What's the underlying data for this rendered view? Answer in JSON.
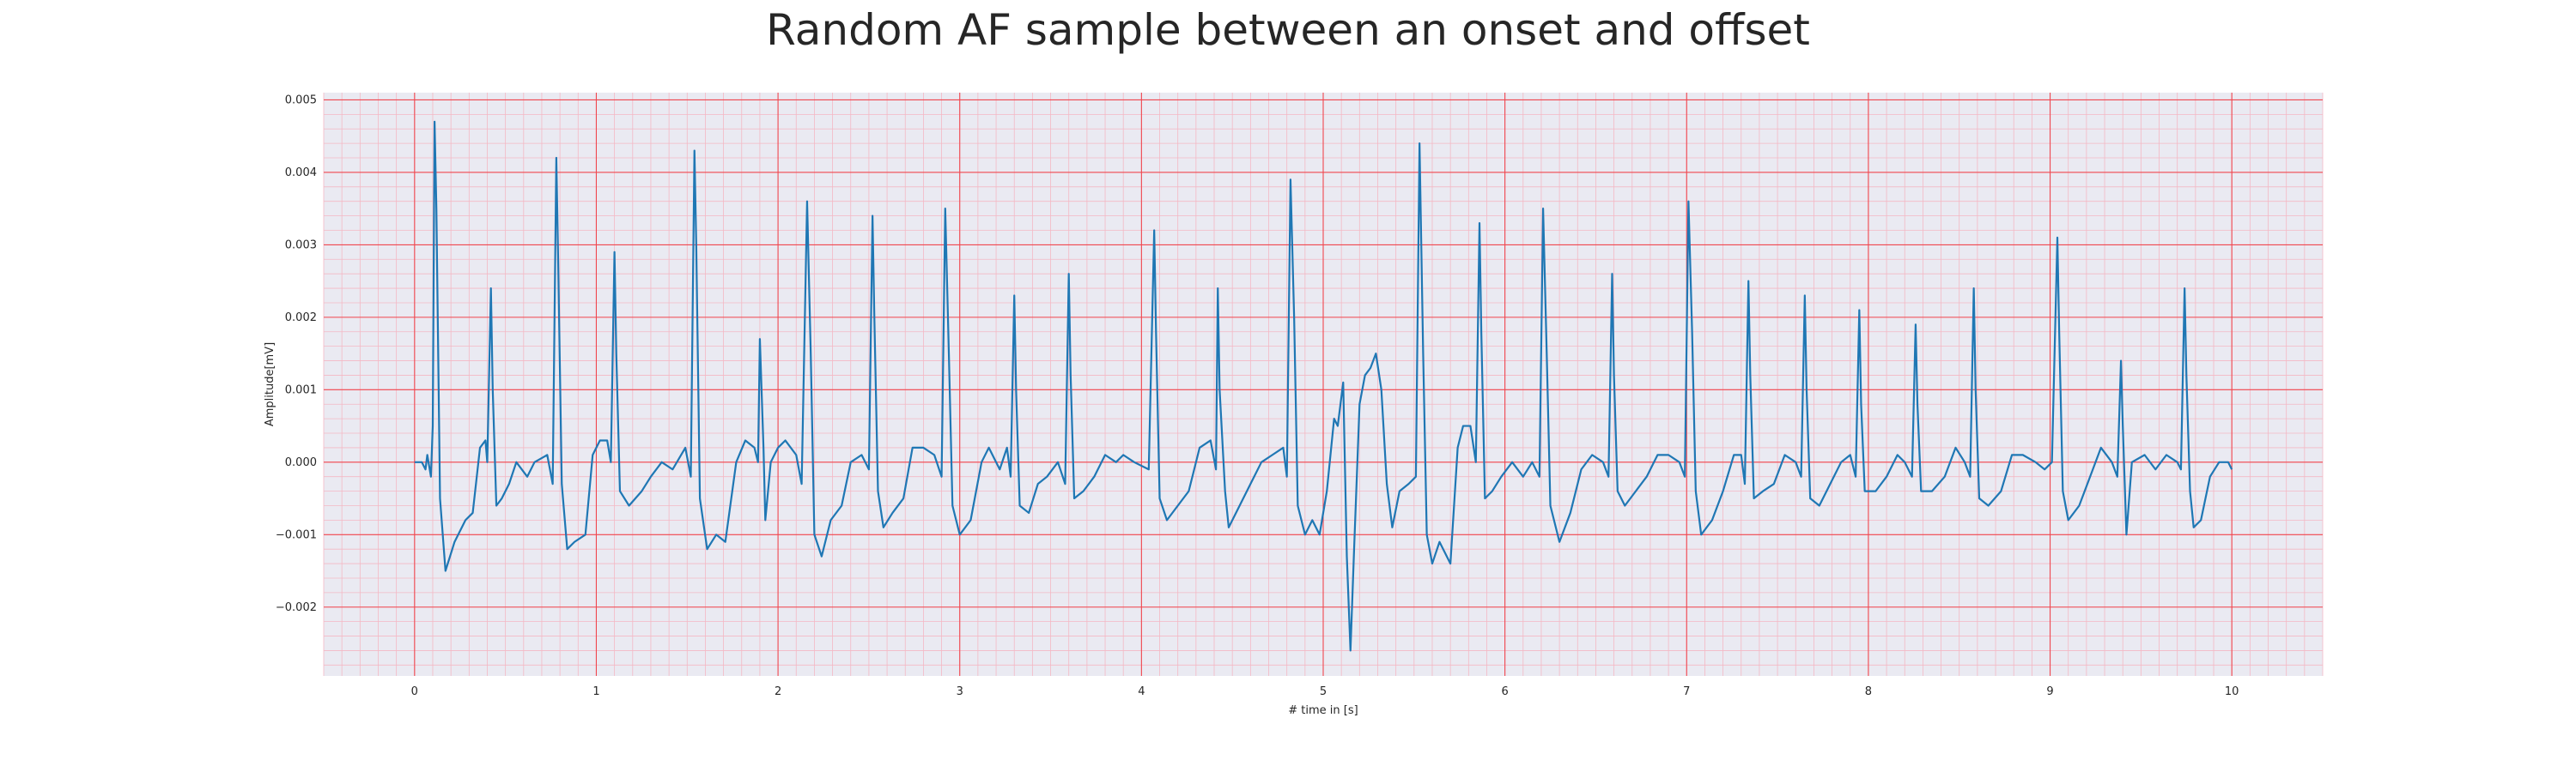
{
  "chart_data": {
    "type": "line",
    "title": "Random AF sample between an onset and offset",
    "xlabel": "# time in [s]",
    "ylabel": "Amplitude[mV]",
    "xlim": [
      -0.5,
      10.5
    ],
    "ylim": [
      -0.00295,
      0.0051
    ],
    "x_ticks": [
      0,
      1,
      2,
      3,
      4,
      5,
      6,
      7,
      8,
      9,
      10
    ],
    "x_tick_labels": [
      "0",
      "1",
      "2",
      "3",
      "4",
      "5",
      "6",
      "7",
      "8",
      "9",
      "10"
    ],
    "y_ticks": [
      -0.002,
      -0.001,
      0.0,
      0.001,
      0.002,
      0.003,
      0.004,
      0.005
    ],
    "y_tick_labels": [
      "−0.002",
      "−0.001",
      "0.000",
      "0.001",
      "0.002",
      "0.003",
      "0.004",
      "0.005"
    ],
    "grid": "major lines red, minor lines pink",
    "background_color": "#eaeaf2",
    "line_color": "#1f77b4",
    "series": [
      {
        "points": [
          [
            0.0,
            0.0
          ],
          [
            0.04,
            0.0
          ],
          [
            0.06,
            -0.0001
          ],
          [
            0.07,
            0.0001
          ],
          [
            0.09,
            -0.0002
          ],
          [
            0.1,
            0.0005
          ],
          [
            0.11,
            0.0047
          ],
          [
            0.12,
            0.0035
          ],
          [
            0.14,
            -0.0005
          ],
          [
            0.17,
            -0.0015
          ],
          [
            0.22,
            -0.0011
          ],
          [
            0.28,
            -0.0008
          ],
          [
            0.32,
            -0.0007
          ],
          [
            0.36,
            0.0002
          ],
          [
            0.39,
            0.0003
          ],
          [
            0.4,
            0.0
          ],
          [
            0.42,
            0.0024
          ],
          [
            0.43,
            0.001
          ],
          [
            0.45,
            -0.0006
          ],
          [
            0.48,
            -0.0005
          ],
          [
            0.52,
            -0.0003
          ],
          [
            0.56,
            0.0
          ],
          [
            0.62,
            -0.0002
          ],
          [
            0.66,
            0.0
          ],
          [
            0.73,
            0.0001
          ],
          [
            0.76,
            -0.0003
          ],
          [
            0.78,
            0.0042
          ],
          [
            0.79,
            0.0028
          ],
          [
            0.81,
            -0.0003
          ],
          [
            0.84,
            -0.0012
          ],
          [
            0.88,
            -0.0011
          ],
          [
            0.94,
            -0.001
          ],
          [
            0.98,
            0.0001
          ],
          [
            1.02,
            0.0003
          ],
          [
            1.06,
            0.0003
          ],
          [
            1.08,
            0.0
          ],
          [
            1.1,
            0.0029
          ],
          [
            1.11,
            0.0015
          ],
          [
            1.13,
            -0.0004
          ],
          [
            1.18,
            -0.0006
          ],
          [
            1.25,
            -0.0004
          ],
          [
            1.3,
            -0.0002
          ],
          [
            1.36,
            0.0
          ],
          [
            1.42,
            -0.0001
          ],
          [
            1.49,
            0.0002
          ],
          [
            1.52,
            -0.0002
          ],
          [
            1.54,
            0.0043
          ],
          [
            1.55,
            0.003
          ],
          [
            1.57,
            -0.0005
          ],
          [
            1.61,
            -0.0012
          ],
          [
            1.66,
            -0.001
          ],
          [
            1.71,
            -0.0011
          ],
          [
            1.77,
            0.0
          ],
          [
            1.82,
            0.0003
          ],
          [
            1.87,
            0.0002
          ],
          [
            1.89,
            0.0
          ],
          [
            1.9,
            0.0017
          ],
          [
            1.92,
            0.0002
          ],
          [
            1.93,
            -0.0008
          ],
          [
            1.96,
            0.0
          ],
          [
            2.0,
            0.0002
          ],
          [
            2.04,
            0.0003
          ],
          [
            2.1,
            0.0001
          ],
          [
            2.13,
            -0.0003
          ],
          [
            2.16,
            0.0036
          ],
          [
            2.18,
            0.0015
          ],
          [
            2.2,
            -0.001
          ],
          [
            2.24,
            -0.0013
          ],
          [
            2.29,
            -0.0008
          ],
          [
            2.35,
            -0.0006
          ],
          [
            2.4,
            0.0
          ],
          [
            2.46,
            0.0001
          ],
          [
            2.5,
            -0.0001
          ],
          [
            2.52,
            0.0034
          ],
          [
            2.53,
            0.002
          ],
          [
            2.55,
            -0.0004
          ],
          [
            2.58,
            -0.0009
          ],
          [
            2.63,
            -0.0007
          ],
          [
            2.69,
            -0.0005
          ],
          [
            2.74,
            0.0002
          ],
          [
            2.8,
            0.0002
          ],
          [
            2.86,
            0.0001
          ],
          [
            2.9,
            -0.0002
          ],
          [
            2.92,
            0.0035
          ],
          [
            2.94,
            0.0015
          ],
          [
            2.96,
            -0.0006
          ],
          [
            3.0,
            -0.001
          ],
          [
            3.06,
            -0.0008
          ],
          [
            3.12,
            0.0
          ],
          [
            3.16,
            0.0002
          ],
          [
            3.22,
            -0.0001
          ],
          [
            3.26,
            0.0002
          ],
          [
            3.28,
            -0.0002
          ],
          [
            3.3,
            0.0023
          ],
          [
            3.31,
            0.001
          ],
          [
            3.33,
            -0.0006
          ],
          [
            3.38,
            -0.0007
          ],
          [
            3.43,
            -0.0003
          ],
          [
            3.48,
            -0.0002
          ],
          [
            3.54,
            0.0
          ],
          [
            3.58,
            -0.0003
          ],
          [
            3.6,
            0.0026
          ],
          [
            3.61,
            0.0012
          ],
          [
            3.63,
            -0.0005
          ],
          [
            3.68,
            -0.0004
          ],
          [
            3.74,
            -0.0002
          ],
          [
            3.8,
            0.0001
          ],
          [
            3.86,
            0.0
          ],
          [
            3.9,
            0.0001
          ],
          [
            3.96,
            0.0
          ],
          [
            4.04,
            -0.0001
          ],
          [
            4.07,
            0.0032
          ],
          [
            4.08,
            0.0018
          ],
          [
            4.1,
            -0.0005
          ],
          [
            4.14,
            -0.0008
          ],
          [
            4.2,
            -0.0006
          ],
          [
            4.26,
            -0.0004
          ],
          [
            4.32,
            0.0002
          ],
          [
            4.38,
            0.0003
          ],
          [
            4.41,
            -0.0001
          ],
          [
            4.42,
            0.0024
          ],
          [
            4.43,
            0.001
          ],
          [
            4.46,
            -0.0004
          ],
          [
            4.48,
            -0.0009
          ],
          [
            4.54,
            -0.0006
          ],
          [
            4.6,
            -0.0003
          ],
          [
            4.66,
            0.0
          ],
          [
            4.72,
            0.0001
          ],
          [
            4.78,
            0.0002
          ],
          [
            4.8,
            -0.0002
          ],
          [
            4.82,
            0.0039
          ],
          [
            4.84,
            0.002
          ],
          [
            4.86,
            -0.0006
          ],
          [
            4.9,
            -0.001
          ],
          [
            4.94,
            -0.0008
          ],
          [
            4.98,
            -0.001
          ],
          [
            5.02,
            -0.0004
          ],
          [
            5.06,
            0.0006
          ],
          [
            5.08,
            0.0005
          ],
          [
            5.11,
            0.0011
          ],
          [
            5.13,
            -0.0013
          ],
          [
            5.15,
            -0.0026
          ],
          [
            5.17,
            -0.0012
          ],
          [
            5.2,
            0.0008
          ],
          [
            5.23,
            0.0012
          ],
          [
            5.26,
            0.0013
          ],
          [
            5.29,
            0.0015
          ],
          [
            5.32,
            0.001
          ],
          [
            5.35,
            -0.0003
          ],
          [
            5.38,
            -0.0009
          ],
          [
            5.42,
            -0.0004
          ],
          [
            5.47,
            -0.0003
          ],
          [
            5.51,
            -0.0002
          ],
          [
            5.53,
            0.0044
          ],
          [
            5.55,
            0.0015
          ],
          [
            5.57,
            -0.001
          ],
          [
            5.6,
            -0.0014
          ],
          [
            5.64,
            -0.0011
          ],
          [
            5.7,
            -0.0014
          ],
          [
            5.74,
            0.0002
          ],
          [
            5.77,
            0.0005
          ],
          [
            5.81,
            0.0005
          ],
          [
            5.84,
            0.0
          ],
          [
            5.86,
            0.0033
          ],
          [
            5.87,
            0.0018
          ],
          [
            5.89,
            -0.0005
          ],
          [
            5.93,
            -0.0004
          ],
          [
            5.98,
            -0.0002
          ],
          [
            6.04,
            0.0
          ],
          [
            6.1,
            -0.0002
          ],
          [
            6.15,
            0.0
          ],
          [
            6.19,
            -0.0002
          ],
          [
            6.21,
            0.0035
          ],
          [
            6.23,
            0.0015
          ],
          [
            6.25,
            -0.0006
          ],
          [
            6.3,
            -0.0011
          ],
          [
            6.36,
            -0.0007
          ],
          [
            6.42,
            -0.0001
          ],
          [
            6.48,
            0.0001
          ],
          [
            6.54,
            0.0
          ],
          [
            6.57,
            -0.0002
          ],
          [
            6.59,
            0.0026
          ],
          [
            6.6,
            0.0012
          ],
          [
            6.62,
            -0.0004
          ],
          [
            6.66,
            -0.0006
          ],
          [
            6.72,
            -0.0004
          ],
          [
            6.78,
            -0.0002
          ],
          [
            6.84,
            0.0001
          ],
          [
            6.9,
            0.0001
          ],
          [
            6.96,
            0.0
          ],
          [
            6.99,
            -0.0002
          ],
          [
            7.01,
            0.0036
          ],
          [
            7.03,
            0.0018
          ],
          [
            7.05,
            -0.0004
          ],
          [
            7.08,
            -0.001
          ],
          [
            7.14,
            -0.0008
          ],
          [
            7.2,
            -0.0004
          ],
          [
            7.26,
            0.0001
          ],
          [
            7.3,
            0.0001
          ],
          [
            7.32,
            -0.0003
          ],
          [
            7.34,
            0.0025
          ],
          [
            7.35,
            0.0012
          ],
          [
            7.37,
            -0.0005
          ],
          [
            7.42,
            -0.0004
          ],
          [
            7.48,
            -0.0003
          ],
          [
            7.54,
            0.0001
          ],
          [
            7.6,
            0.0
          ],
          [
            7.63,
            -0.0002
          ],
          [
            7.65,
            0.0023
          ],
          [
            7.66,
            0.001
          ],
          [
            7.68,
            -0.0005
          ],
          [
            7.73,
            -0.0006
          ],
          [
            7.79,
            -0.0003
          ],
          [
            7.85,
            0.0
          ],
          [
            7.9,
            0.0001
          ],
          [
            7.93,
            -0.0002
          ],
          [
            7.95,
            0.0021
          ],
          [
            7.96,
            0.0008
          ],
          [
            7.98,
            -0.0004
          ],
          [
            8.04,
            -0.0004
          ],
          [
            8.1,
            -0.0002
          ],
          [
            8.16,
            0.0001
          ],
          [
            8.2,
            0.0
          ],
          [
            8.24,
            -0.0002
          ],
          [
            8.26,
            0.0019
          ],
          [
            8.27,
            0.0008
          ],
          [
            8.29,
            -0.0004
          ],
          [
            8.35,
            -0.0004
          ],
          [
            8.42,
            -0.0002
          ],
          [
            8.48,
            0.0002
          ],
          [
            8.53,
            0.0
          ],
          [
            8.56,
            -0.0002
          ],
          [
            8.58,
            0.0024
          ],
          [
            8.59,
            0.001
          ],
          [
            8.61,
            -0.0005
          ],
          [
            8.66,
            -0.0006
          ],
          [
            8.73,
            -0.0004
          ],
          [
            8.79,
            0.0001
          ],
          [
            8.85,
            0.0001
          ],
          [
            8.92,
            0.0
          ],
          [
            8.97,
            -0.0001
          ],
          [
            9.01,
            0.0
          ],
          [
            9.04,
            0.0031
          ],
          [
            9.05,
            0.0018
          ],
          [
            9.07,
            -0.0004
          ],
          [
            9.1,
            -0.0008
          ],
          [
            9.16,
            -0.0006
          ],
          [
            9.22,
            -0.0002
          ],
          [
            9.28,
            0.0002
          ],
          [
            9.34,
            0.0
          ],
          [
            9.37,
            -0.0002
          ],
          [
            9.39,
            0.0014
          ],
          [
            9.4,
            0.0005
          ],
          [
            9.42,
            -0.001
          ],
          [
            9.45,
            0.0
          ],
          [
            9.52,
            0.0001
          ],
          [
            9.58,
            -0.0001
          ],
          [
            9.64,
            0.0001
          ],
          [
            9.7,
            0.0
          ],
          [
            9.72,
            -0.0001
          ],
          [
            9.74,
            0.0024
          ],
          [
            9.75,
            0.0012
          ],
          [
            9.77,
            -0.0004
          ],
          [
            9.79,
            -0.0009
          ],
          [
            9.83,
            -0.0008
          ],
          [
            9.88,
            -0.0002
          ],
          [
            9.93,
            0.0
          ],
          [
            9.98,
            0.0
          ],
          [
            10.0,
            -0.0001
          ]
        ]
      }
    ]
  }
}
